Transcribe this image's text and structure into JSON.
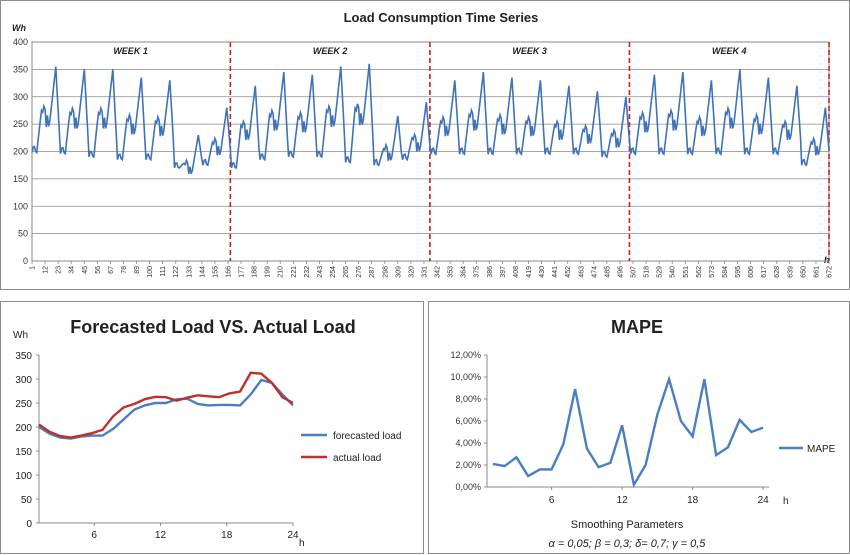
{
  "chart_data": [
    {
      "type": "line",
      "title": "Load Consumption Time Series",
      "ylabel": "Wh",
      "xlabel": "h",
      "ylim": [
        0,
        400
      ],
      "yticks": [
        0,
        50,
        100,
        150,
        200,
        250,
        300,
        350,
        400
      ],
      "xlim": [
        1,
        672
      ],
      "xtick_labels": [
        1,
        12,
        23,
        34,
        45,
        56,
        67,
        78,
        89,
        100,
        111,
        122,
        133,
        144,
        155,
        166,
        177,
        188,
        199,
        210,
        221,
        232,
        243,
        254,
        265,
        276,
        287,
        298,
        309,
        320,
        331,
        342,
        353,
        364,
        375,
        386,
        397,
        408,
        419,
        430,
        441,
        452,
        463,
        474,
        485,
        496,
        507,
        518,
        529,
        540,
        551,
        562,
        573,
        584,
        595,
        606,
        617,
        628,
        639,
        650,
        661,
        672
      ],
      "grid": "horizontal",
      "color": "#3f72b9",
      "separator_color": "#cc1f1f",
      "week_boundaries": [
        168,
        336,
        504,
        672
      ],
      "weeks": [
        "WEEK 1",
        "WEEK 2",
        "WEEK 3",
        "WEEK 4"
      ],
      "daily_peaks": [
        [
          355,
          350,
          350,
          335,
          330,
          230,
          280
        ],
        [
          320,
          345,
          340,
          355,
          360,
          265,
          290
        ],
        [
          330,
          345,
          335,
          330,
          320,
          310,
          300
        ],
        [
          340,
          345,
          330,
          350,
          335,
          320,
          280
        ]
      ],
      "daily_lows": [
        [
          198,
          196,
          190,
          185,
          185,
          170,
          175
        ],
        [
          170,
          185,
          190,
          190,
          180,
          175,
          185
        ],
        [
          195,
          195,
          195,
          195,
          195,
          195,
          190
        ],
        [
          195,
          195,
          195,
          195,
          195,
          195,
          175
        ]
      ],
      "series": [
        {
          "values": []
        }
      ]
    },
    {
      "type": "line",
      "title": "Forecasted Load VS. Actual Load",
      "ylabel": "Wh",
      "xlabel": "h",
      "ylim": [
        0,
        350
      ],
      "yticks": [
        0,
        50,
        100,
        150,
        200,
        250,
        300,
        350
      ],
      "xlim": [
        1,
        24
      ],
      "xticks": [
        6,
        12,
        18,
        24
      ],
      "legend_position": "right",
      "series": [
        {
          "name": "forecasted load",
          "color": "#4a7ec2",
          "values": [
            200,
            186,
            178,
            176,
            180,
            182,
            182,
            196,
            216,
            236,
            245,
            250,
            250,
            258,
            259,
            248,
            245,
            246,
            246,
            245,
            268,
            298,
            292,
            268,
            245
          ]
        },
        {
          "name": "actual load",
          "color": "#c0302a",
          "values": [
            205,
            190,
            181,
            178,
            182,
            187,
            194,
            222,
            241,
            248,
            258,
            263,
            262,
            255,
            261,
            266,
            264,
            262,
            270,
            274,
            313,
            311,
            292,
            262,
            250
          ]
        }
      ]
    },
    {
      "type": "line",
      "title": "MAPE",
      "xlabel": "h",
      "ylim": [
        0,
        12
      ],
      "ytick_labels": [
        "0,00%",
        "2,00%",
        "4,00%",
        "6,00%",
        "8,00%",
        "10,00%",
        "12,00%"
      ],
      "xlim": [
        1,
        24
      ],
      "xticks": [
        6,
        12,
        18,
        24
      ],
      "legend_position": "right",
      "series": [
        {
          "name": "MAPE",
          "color": "#4a7ec2",
          "values": [
            2.1,
            1.9,
            2.7,
            1.0,
            1.6,
            1.6,
            3.9,
            8.9,
            3.5,
            1.8,
            2.2,
            5.6,
            0.2,
            2.0,
            6.6,
            9.8,
            6.0,
            4.6,
            9.8,
            2.9,
            3.6,
            6.1,
            5.0,
            5.4
          ]
        }
      ],
      "caption_title": "Smoothing Parameters",
      "caption_params": "α = 0,05; β = 0,3; δ= 0,7; γ = 0,5"
    }
  ]
}
